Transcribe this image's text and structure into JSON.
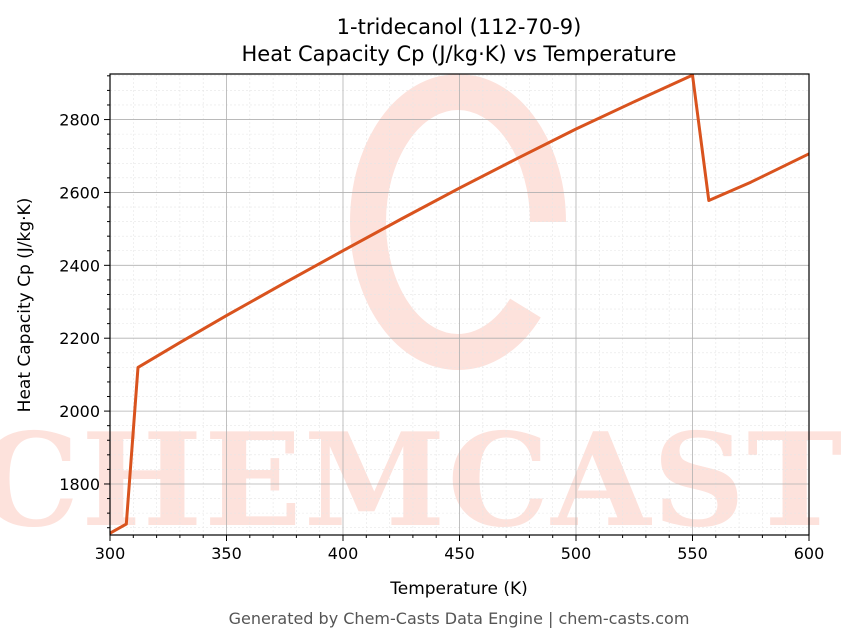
{
  "chart_data": {
    "type": "line",
    "title": "1-tridecanol (112-70-9)",
    "subtitle": "Heat Capacity Cp (J/kg·K) vs Temperature",
    "xlabel": "Temperature (K)",
    "ylabel": "Heat Capacity Cp (J/kg·K)",
    "xlim": [
      300,
      600
    ],
    "ylim": [
      1660,
      2925
    ],
    "xticks": [
      300,
      350,
      400,
      450,
      500,
      550,
      600
    ],
    "yticks": [
      1800,
      2000,
      2200,
      2400,
      2600,
      2800
    ],
    "grid": true,
    "line_color": "#d9531e",
    "series": [
      {
        "x": [
          300,
          307,
          312,
          330,
          350,
          375,
          400,
          425,
          450,
          475,
          500,
          525,
          550,
          557,
          575,
          600
        ],
        "y": [
          1665,
          1690,
          2120,
          2188,
          2262,
          2352,
          2440,
          2527,
          2612,
          2694,
          2774,
          2849,
          2922,
          2578,
          2628,
          2706
        ]
      }
    ]
  },
  "watermark": {
    "text": "CHEMCASTS",
    "color": "#fde2dc"
  },
  "footer": "Generated by Chem-Casts Data Engine | chem-casts.com"
}
